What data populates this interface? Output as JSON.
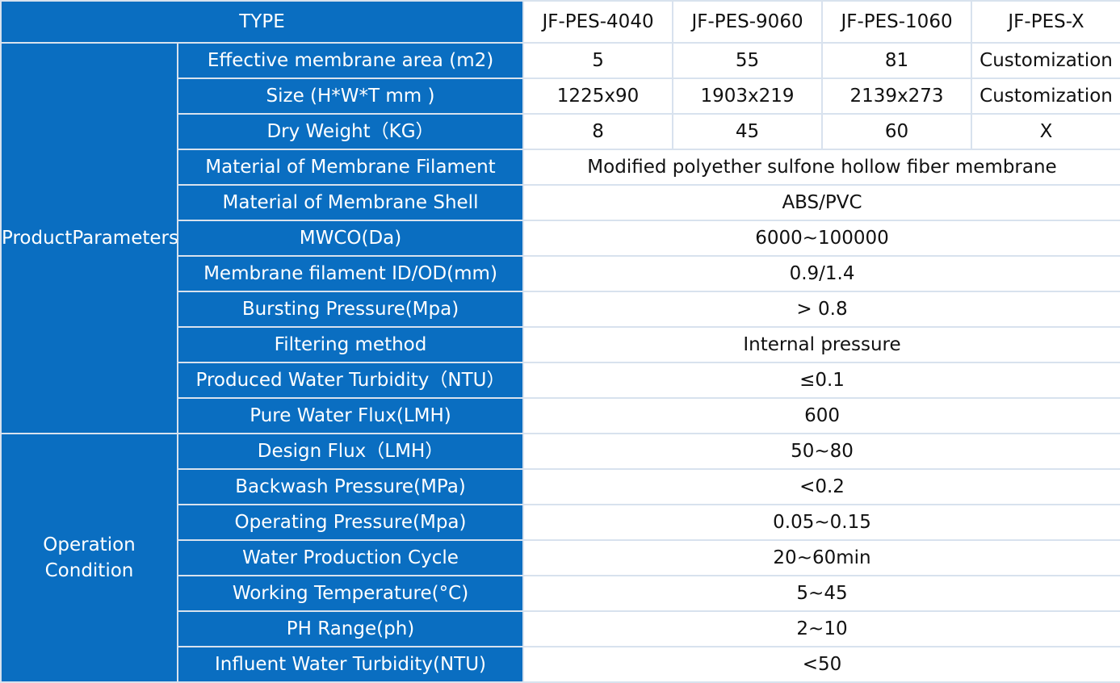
{
  "header": {
    "type_label": "TYPE",
    "models": [
      "JF-PES-4040",
      "JF-PES-9060",
      "JF-PES-1060",
      "JF-PES-X"
    ]
  },
  "groups": [
    {
      "name": "ProductParameters",
      "rows": [
        {
          "label": "Effective membrane area (m2)",
          "values": [
            "5",
            "55",
            "81",
            "Customization"
          ]
        },
        {
          "label": "Size (H*W*T mm )",
          "values": [
            "1225x90",
            "1903x219",
            "2139x273",
            "Customization"
          ]
        },
        {
          "label": "Dry Weight（KG）",
          "values": [
            "8",
            "45",
            "60",
            "X"
          ]
        },
        {
          "label": "Material of Membrane Filament",
          "value": "Modified polyether sulfone hollow fiber membrane"
        },
        {
          "label": "Material of Membrane Shell",
          "value": "ABS/PVC"
        },
        {
          "label": "MWCO(Da)",
          "value": "6000~100000"
        },
        {
          "label": "Membrane filament ID/OD(mm)",
          "value": "0.9/1.4"
        },
        {
          "label": "Bursting Pressure(Mpa)",
          "value": "> 0.8"
        },
        {
          "label": "Filtering method",
          "value": "Internal pressure"
        },
        {
          "label": "Produced Water Turbidity（NTU）",
          "value": "≤0.1"
        },
        {
          "label": "Pure Water Flux(LMH)",
          "value": "600"
        }
      ]
    },
    {
      "name_lines": [
        "Operation",
        "Condition"
      ],
      "rows": [
        {
          "label": "Design Flux（LMH）",
          "value": "50~80"
        },
        {
          "label": "Backwash Pressure(MPa)",
          "value": "<0.2"
        },
        {
          "label": "Operating Pressure(Mpa)",
          "value": "0.05~0.15"
        },
        {
          "label": "Water Production Cycle",
          "value": "20~60min"
        },
        {
          "label": "Working Temperature(°C)",
          "value": "5~45"
        },
        {
          "label": "PH Range(ph)",
          "value": "2~10"
        },
        {
          "label": "Influent Water Turbidity(NTU)",
          "value": "<50"
        }
      ]
    }
  ],
  "colors": {
    "header_blue": "#0a6ec1",
    "grid_line": "#d8e2ee",
    "cell_background": "#ffffff"
  }
}
